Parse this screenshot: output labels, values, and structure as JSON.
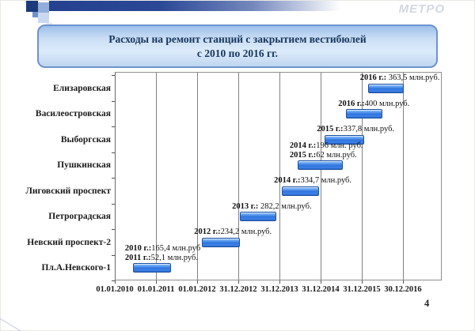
{
  "slide": {
    "logo": "МЕТРО",
    "title_line1": "Расходы на ремонт станций с закрытием вестибюлей",
    "title_line2": "с 2010 по 2016 гг.",
    "page_number": "4"
  },
  "colors": {
    "bar_fill": "#3579e0",
    "bar_border": "#1c4f9e",
    "grid": "#828282",
    "title_text": "#17365d",
    "deco_navy": "#1b3a7a",
    "title_box_border": "#6e93cd"
  },
  "chart_data": {
    "type": "bar",
    "variant": "horizontal-gantt",
    "title": "Расходы на ремонт станций с закрытием вестибюлей с 2010 по 2016 гг.",
    "grid": "vertical-only",
    "legend": "none",
    "x_axis": {
      "unit": "year (1 gridline = 1 year, left gridline = 01.01.2010)",
      "tick_labels": [
        "01.01.2010",
        "01.01.2011",
        "01.01.2012",
        "31.12.2012",
        "31.12.2013",
        "31.12.2014",
        "31.12.2015",
        "30.12.2016"
      ],
      "gridline_years": [
        2010,
        2011,
        2012,
        2013,
        2014,
        2015,
        2016,
        2017
      ]
    },
    "bars": [
      {
        "station": "Елизаровская",
        "start_year": 2016.15,
        "end_year": 2017.02,
        "label_lines": [
          {
            "prefix": "2016 г.:",
            "value": " 363,5 млн.руб."
          }
        ],
        "costs": [
          {
            "year": "2016",
            "mln_rub": 363.5
          }
        ]
      },
      {
        "station": "Василеостровская",
        "start_year": 2015.62,
        "end_year": 2016.5,
        "label_lines": [
          {
            "prefix": "2016 г.:",
            "value": "400 млн.руб."
          }
        ],
        "costs": [
          {
            "year": "2016",
            "mln_rub": 400
          }
        ]
      },
      {
        "station": "Выборгская",
        "start_year": 2015.1,
        "end_year": 2016.06,
        "label_lines": [
          {
            "prefix": "2015 г.:",
            "value": "337,8 млн.руб."
          }
        ],
        "costs": [
          {
            "year": "2015",
            "mln_rub": 337.8
          }
        ]
      },
      {
        "station": "Пушкинская",
        "start_year": 2014.44,
        "end_year": 2015.54,
        "label_lines": [
          {
            "prefix": "2014 г.:",
            "value": "196 млн. руб."
          },
          {
            "prefix": "2015 г.:",
            "value": "62 млн.руб."
          }
        ],
        "costs": [
          {
            "year": "2014",
            "mln_rub": 196
          },
          {
            "year": "2015",
            "mln_rub": 62
          }
        ]
      },
      {
        "station": "Лиговский проспект",
        "start_year": 2014.06,
        "end_year": 2014.96,
        "label_lines": [
          {
            "prefix": "2014 г.:",
            "value": "334,7 млн.руб."
          }
        ],
        "costs": [
          {
            "year": "2014",
            "mln_rub": 334.7
          }
        ]
      },
      {
        "station": "Петроградская",
        "start_year": 2013.04,
        "end_year": 2013.92,
        "label_lines": [
          {
            "prefix": "2013 г.:",
            "value": " 282,2 млн.руб."
          }
        ],
        "costs": [
          {
            "year": "2013",
            "mln_rub": 282.2
          }
        ]
      },
      {
        "station": "Невский проспект-2",
        "start_year": 2012.12,
        "end_year": 2013.04,
        "label_lines": [
          {
            "prefix": "2012 г.:",
            "value": "234,2 млн.руб."
          }
        ],
        "costs": [
          {
            "year": "2012",
            "mln_rub": 234.2
          }
        ]
      },
      {
        "station": "Пл.А.Невского-1",
        "start_year": 2010.44,
        "end_year": 2011.37,
        "label_lines": [
          {
            "prefix": "2010 г.:",
            "value": "165,4 млн.руб"
          },
          {
            "prefix": "2011 г.:",
            "value": "52,1 млн.руб."
          }
        ],
        "costs": [
          {
            "year": "2010",
            "mln_rub": 165.4
          },
          {
            "year": "2011",
            "mln_rub": 52.1
          }
        ]
      }
    ]
  }
}
